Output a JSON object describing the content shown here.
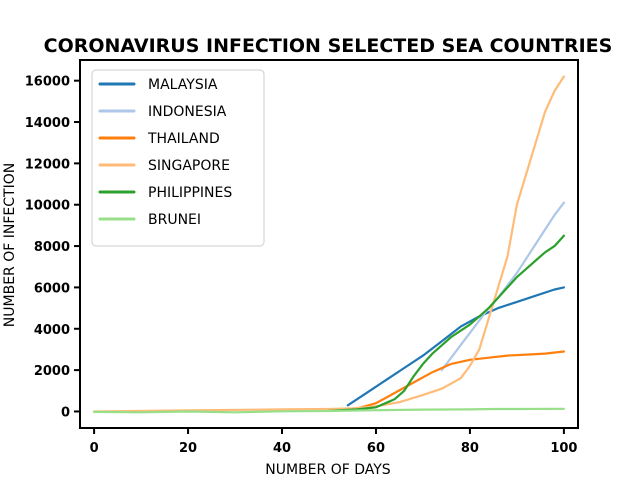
{
  "chart_data": {
    "type": "line",
    "title": "Coronavirus Infection Selected SEA Countries",
    "xlabel": "Number of Days",
    "ylabel": "Number of Infection",
    "xlim": [
      -3,
      103
    ],
    "ylim": [
      -800,
      17000
    ],
    "xticks": [
      0,
      20,
      40,
      60,
      80,
      100
    ],
    "yticks": [
      0,
      2000,
      4000,
      6000,
      8000,
      10000,
      12000,
      14000,
      16000
    ],
    "grid": false,
    "legend": "top-left",
    "series": [
      {
        "name": "Malaysia",
        "color": "#1f77b4",
        "x": [
          54,
          58,
          62,
          66,
          70,
          74,
          78,
          82,
          86,
          90,
          94,
          98,
          100
        ],
        "y": [
          300,
          900,
          1500,
          2100,
          2700,
          3400,
          4100,
          4600,
          5000,
          5300,
          5600,
          5900,
          6000
        ]
      },
      {
        "name": "Indonesia",
        "color": "#aec7e8",
        "x": [
          74,
          76,
          78,
          80,
          82,
          84,
          86,
          88,
          90,
          92,
          94,
          96,
          98,
          100
        ],
        "y": [
          2000,
          2600,
          3200,
          3800,
          4400,
          5000,
          5500,
          6100,
          6700,
          7400,
          8100,
          8800,
          9500,
          10100
        ]
      },
      {
        "name": "Thailand",
        "color": "#ff7f0e",
        "x": [
          50,
          56,
          60,
          64,
          68,
          72,
          76,
          80,
          84,
          88,
          92,
          96,
          100
        ],
        "y": [
          30,
          150,
          400,
          900,
          1400,
          1900,
          2300,
          2500,
          2600,
          2700,
          2750,
          2800,
          2900
        ]
      },
      {
        "name": "Singapore",
        "color": "#ffbb78",
        "x": [
          0,
          20,
          40,
          50,
          55,
          60,
          65,
          70,
          74,
          78,
          80,
          82,
          84,
          86,
          88,
          90,
          92,
          94,
          96,
          98,
          100
        ],
        "y": [
          0,
          50,
          100,
          120,
          150,
          250,
          450,
          800,
          1100,
          1600,
          2200,
          3000,
          4500,
          6000,
          7500,
          10000,
          11500,
          13000,
          14500,
          15500,
          16200
        ]
      },
      {
        "name": "Philippines",
        "color": "#2ca02c",
        "x": [
          50,
          56,
          60,
          64,
          66,
          68,
          70,
          72,
          74,
          76,
          78,
          80,
          82,
          84,
          86,
          88,
          90,
          92,
          94,
          96,
          98,
          100
        ],
        "y": [
          30,
          100,
          200,
          600,
          1000,
          1700,
          2300,
          2800,
          3200,
          3600,
          3900,
          4200,
          4600,
          5000,
          5500,
          6000,
          6500,
          6900,
          7300,
          7700,
          8000,
          8500
        ]
      },
      {
        "name": "Brunei",
        "color": "#98df8a",
        "x": [
          0,
          10,
          20,
          30,
          40,
          50,
          60,
          70,
          80,
          85,
          90,
          100
        ],
        "y": [
          -20,
          -40,
          0,
          -40,
          10,
          20,
          60,
          90,
          100,
          120,
          120,
          130
        ]
      }
    ]
  }
}
